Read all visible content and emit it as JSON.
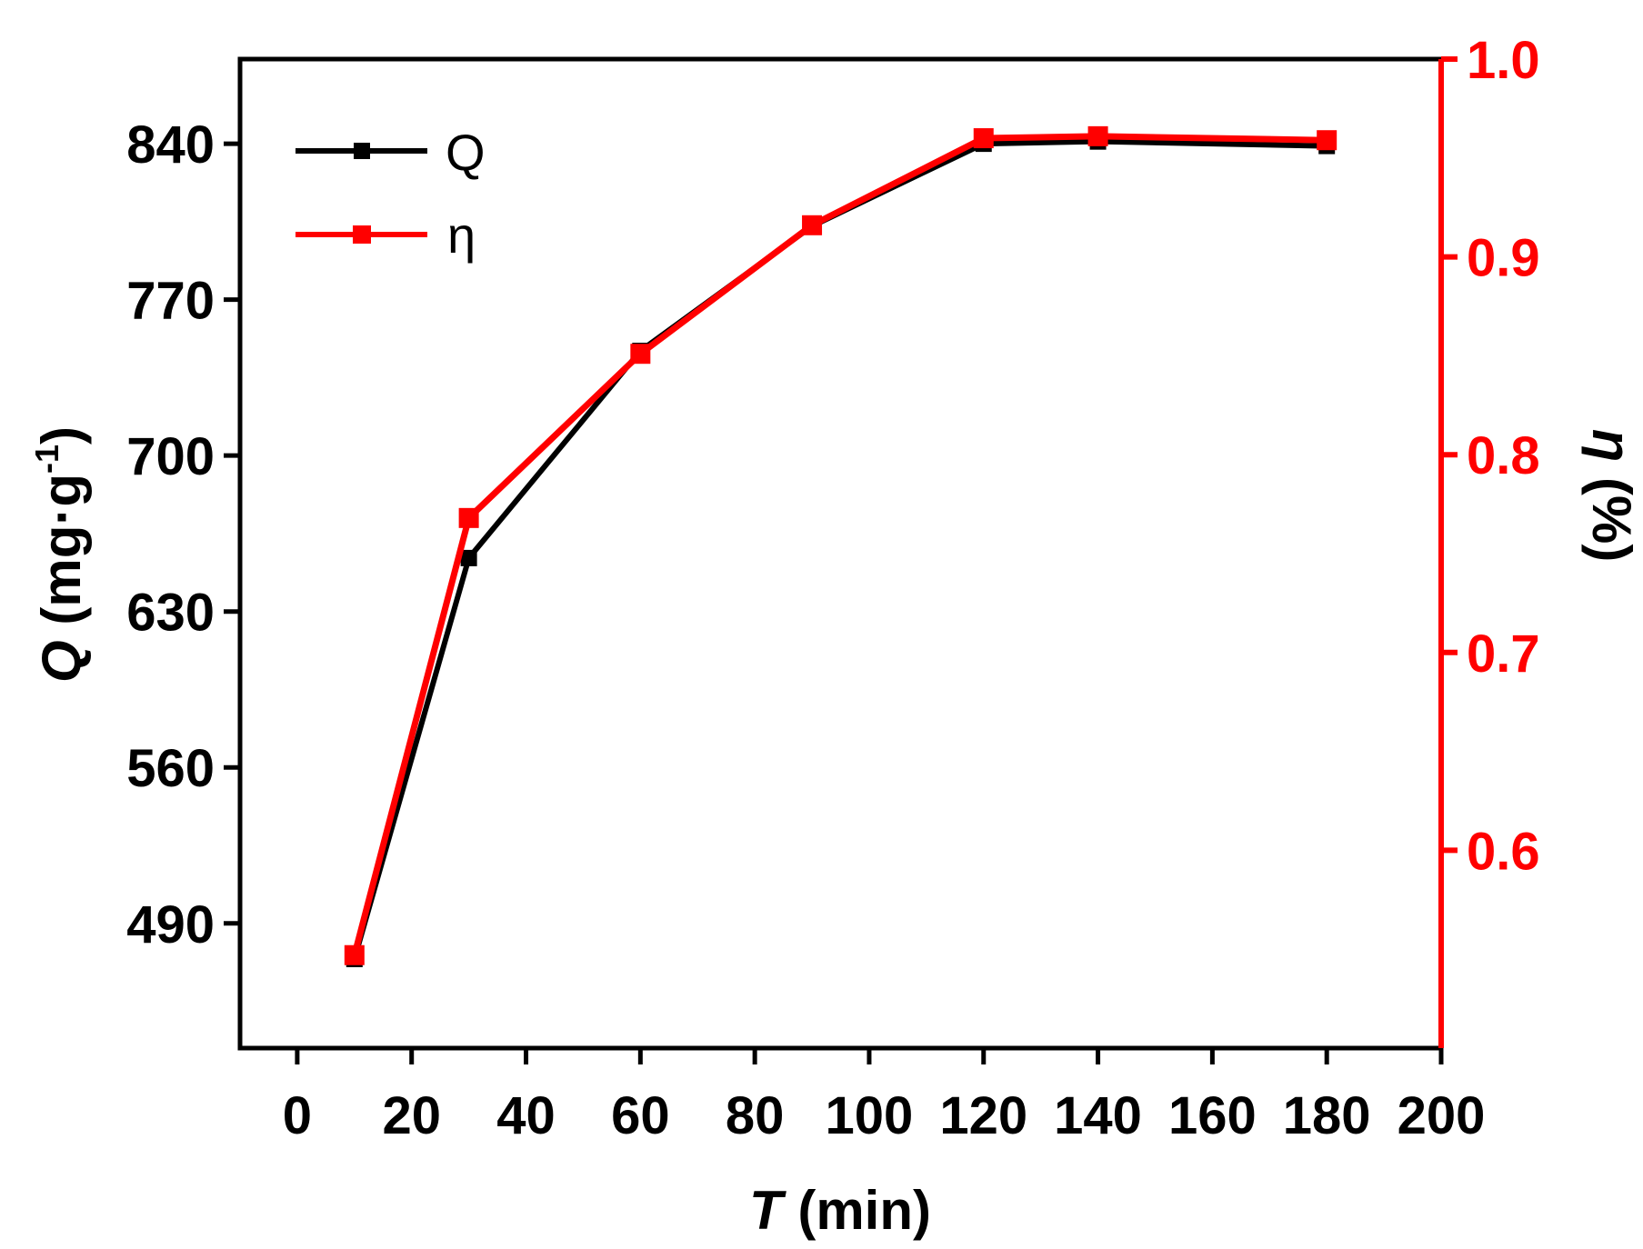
{
  "chart_data": {
    "type": "line",
    "title": "",
    "x": [
      10,
      30,
      60,
      90,
      120,
      140,
      180
    ],
    "xlim": [
      -10,
      200
    ],
    "xticks": [
      0,
      20,
      40,
      60,
      80,
      100,
      120,
      140,
      160,
      180,
      200
    ],
    "xlabel": {
      "italic": "T",
      "rest": " (min)"
    },
    "y_left": {
      "lim": [
        434,
        878
      ],
      "ticks": [
        490,
        560,
        630,
        700,
        770,
        840
      ],
      "label_italic": "Q",
      "label_rest": " (mg·g",
      "label_sup": "-1",
      "label_close": ")",
      "color": "#000000"
    },
    "y_right": {
      "lim": [
        0.5,
        1.0
      ],
      "ticks": [
        0.6,
        0.7,
        0.8,
        0.9,
        1.0
      ],
      "label_italic": "η",
      "label_rest": " (%)",
      "color": "#ff0000"
    },
    "series": [
      {
        "name": "Q",
        "axis": "left",
        "color": "#000000",
        "marker": "square",
        "values": [
          474,
          654,
          747,
          803,
          840,
          841,
          839
        ]
      },
      {
        "name": "η",
        "axis": "right",
        "color": "#ff0000",
        "marker": "square",
        "values": [
          0.547,
          0.768,
          0.851,
          0.916,
          0.96,
          0.961,
          0.959
        ]
      }
    ],
    "legend": {
      "position": "top-left"
    },
    "grid": false
  }
}
